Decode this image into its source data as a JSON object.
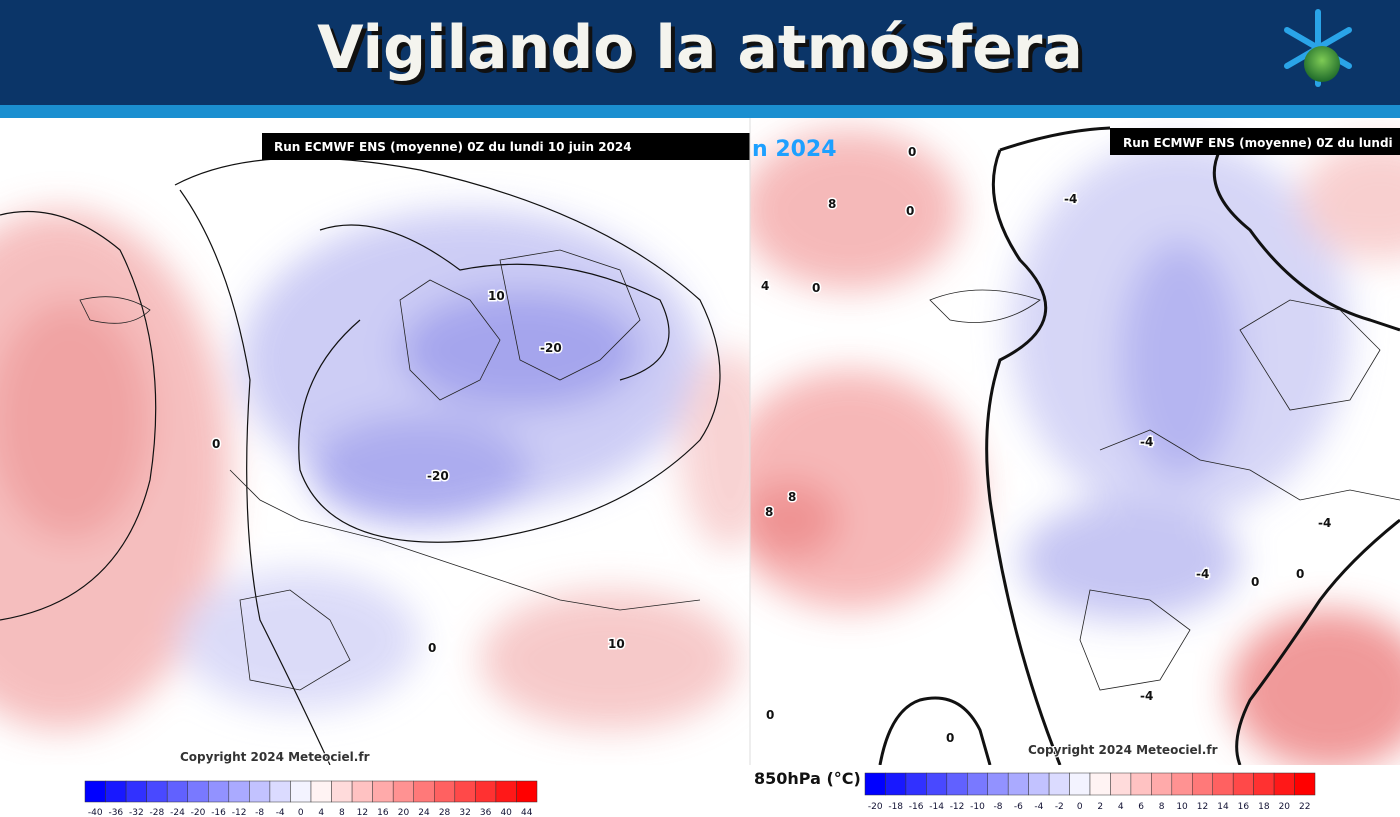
{
  "header": {
    "title": "Vigilando la atmósfera"
  },
  "left_map": {
    "run_label": "Run ECMWF ENS (moyenne) 0Z du lundi 10 juin 2024",
    "copyright": "Copyright 2024 Meteociel.fr",
    "contour_labels": [
      "10",
      "-20",
      "-20",
      "0",
      "0",
      "10"
    ],
    "legend_ticks": [
      -40,
      -36,
      -32,
      -28,
      -24,
      -20,
      -16,
      -12,
      -8,
      -4,
      0,
      4,
      8,
      12,
      16,
      20,
      24,
      28,
      32,
      36,
      40,
      44
    ]
  },
  "right_map": {
    "date_fragment": "n 2024",
    "run_label": "Run ECMWF ENS (moyenne) 0Z du lundi",
    "copyright": "Copyright 2024 Meteociel.fr",
    "contour_labels": [
      "0",
      "8",
      "0",
      "-4",
      "4",
      "0",
      "8",
      "8",
      "-4",
      "-4",
      "-4",
      "0",
      "0",
      "-4",
      "0",
      "0"
    ],
    "unit_label": "850hPa (°C)",
    "legend_ticks": [
      -20,
      -18,
      -16,
      -14,
      -12,
      -10,
      -8,
      -6,
      -4,
      -2,
      0,
      2,
      4,
      6,
      8,
      10,
      12,
      14,
      16,
      18,
      20,
      22
    ]
  }
}
